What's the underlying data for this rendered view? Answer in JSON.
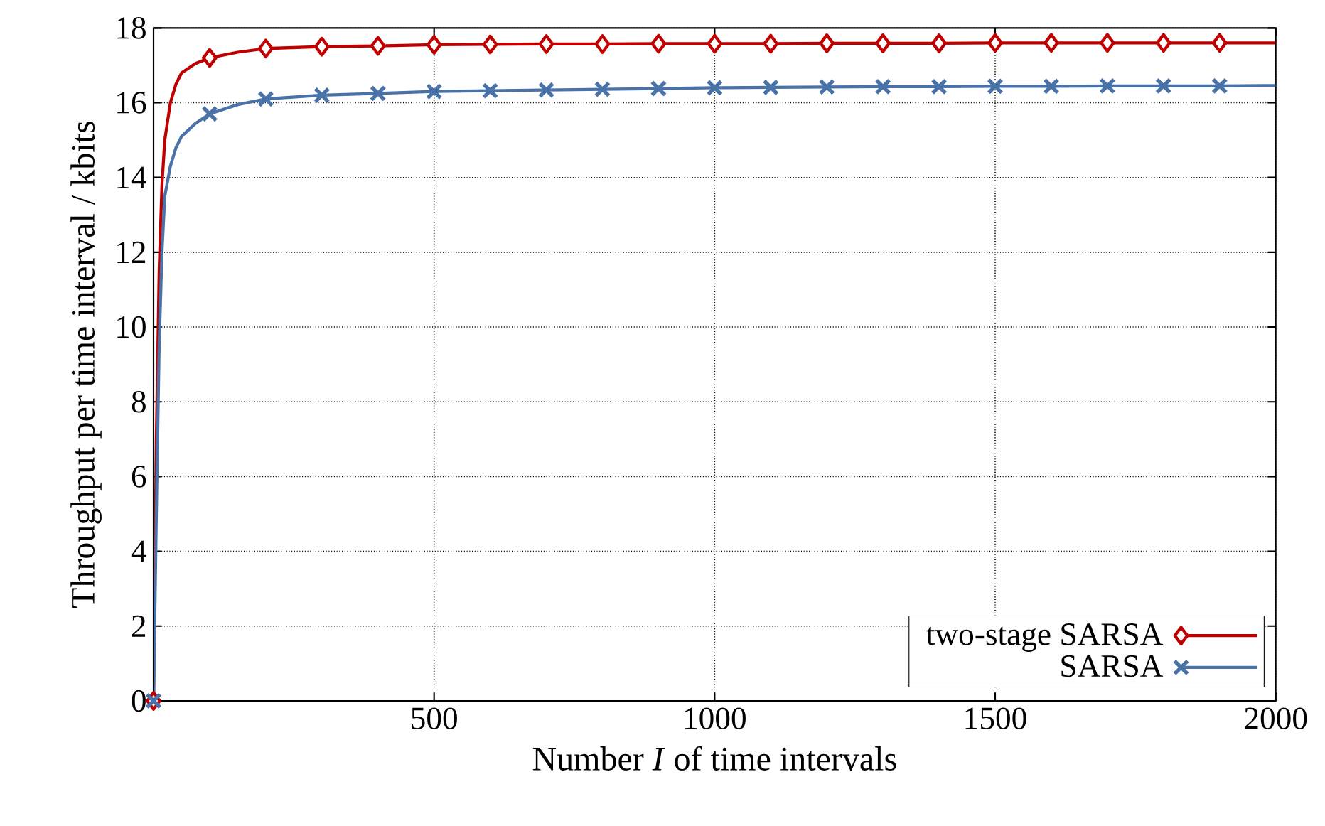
{
  "chart_data": {
    "type": "line",
    "xlabel": "Number *I* of time intervals",
    "ylabel": "Throughput per time interval / kbits",
    "xlim": [
      0,
      2000
    ],
    "ylim": [
      0,
      18
    ],
    "xticks": [
      500,
      1000,
      1500,
      2000
    ],
    "yticks": [
      0,
      2,
      4,
      6,
      8,
      10,
      12,
      14,
      16,
      18
    ],
    "grid": true,
    "legend": "bottom right",
    "series": [
      {
        "name": "two-stage SARSA",
        "color": "#c00000",
        "marker": "diamond",
        "x": [
          0,
          5,
          10,
          15,
          20,
          30,
          40,
          50,
          75,
          100,
          150,
          200,
          300,
          400,
          500,
          600,
          700,
          800,
          900,
          1000,
          1100,
          1200,
          1300,
          1400,
          1500,
          1600,
          1700,
          1800,
          1900,
          2000
        ],
        "values": [
          0,
          7,
          11.5,
          13.8,
          15,
          16,
          16.5,
          16.8,
          17.05,
          17.2,
          17.35,
          17.45,
          17.5,
          17.52,
          17.55,
          17.56,
          17.57,
          17.57,
          17.58,
          17.58,
          17.58,
          17.59,
          17.59,
          17.59,
          17.6,
          17.6,
          17.6,
          17.6,
          17.6,
          17.6
        ]
      },
      {
        "name": "SARSA",
        "color": "#4872a8",
        "marker": "cross",
        "x": [
          0,
          5,
          10,
          15,
          20,
          30,
          40,
          50,
          75,
          100,
          150,
          200,
          300,
          400,
          500,
          600,
          700,
          800,
          900,
          1000,
          1100,
          1200,
          1300,
          1400,
          1500,
          1600,
          1700,
          1800,
          1900,
          2000
        ],
        "values": [
          0,
          5,
          9.5,
          12,
          13.5,
          14.3,
          14.8,
          15.1,
          15.45,
          15.7,
          15.95,
          16.1,
          16.2,
          16.25,
          16.3,
          16.32,
          16.34,
          16.36,
          16.38,
          16.4,
          16.41,
          16.42,
          16.43,
          16.43,
          16.44,
          16.44,
          16.45,
          16.45,
          16.45,
          16.46
        ]
      }
    ]
  }
}
